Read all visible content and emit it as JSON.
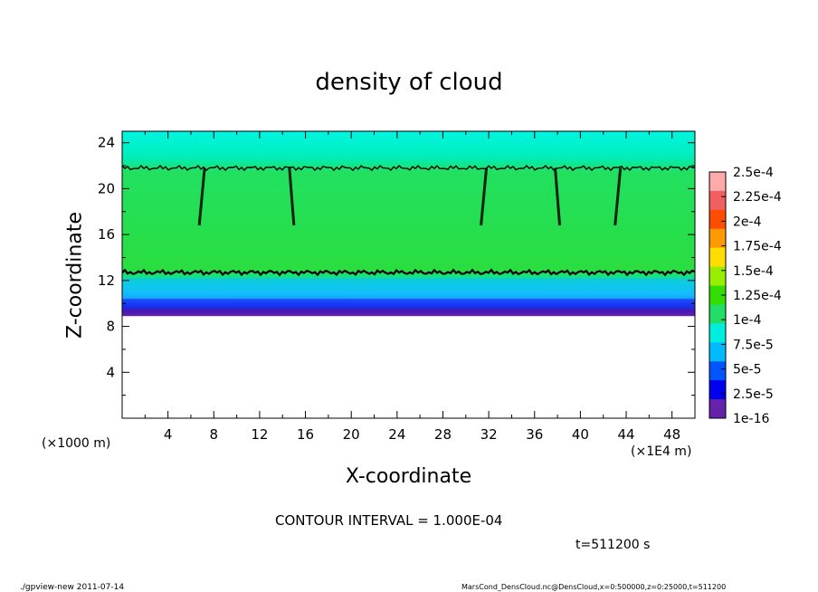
{
  "chart_data": {
    "type": "heatmap",
    "title": "density of cloud",
    "xlabel": "X-coordinate",
    "ylabel": "Z-coordinate",
    "x_unit_left": "(×1000 m)",
    "x_unit_right": "(×1E4 m)",
    "xlim": [
      0,
      50
    ],
    "ylim": [
      0,
      25
    ],
    "x_ticks": [
      "4",
      "8",
      "12",
      "16",
      "20",
      "24",
      "28",
      "32",
      "36",
      "40",
      "44",
      "48"
    ],
    "y_ticks": [
      "4",
      "8",
      "12",
      "16",
      "20",
      "24"
    ],
    "grid": false,
    "colorbar": {
      "labels": [
        "2.5e-4",
        "2.25e-4",
        "2e-4",
        "1.75e-4",
        "1.5e-4",
        "1.25e-4",
        "1e-4",
        "7.5e-5",
        "5e-5",
        "2.5e-5",
        "1e-16"
      ],
      "colors": [
        "#ffaaaa",
        "#f06060",
        "#ff4d00",
        "#ff9900",
        "#ffdd00",
        "#99ee00",
        "#33dd00",
        "#22dd66",
        "#00eedd",
        "#00bbff",
        "#0055ff",
        "#0000ee",
        "#6622aa"
      ]
    },
    "layers": [
      {
        "z_from": 0,
        "z_to": 8.9,
        "band": "none"
      },
      {
        "z_from": 8.9,
        "z_to": 9.6,
        "band": "1e-16 – 2.5e-5"
      },
      {
        "z_from": 9.6,
        "z_to": 10.4,
        "band": "2.5e-5 – 5e-5"
      },
      {
        "z_from": 10.4,
        "z_to": 12.2,
        "band": "5e-5 – 7.5e-5"
      },
      {
        "z_from": 12.2,
        "z_to": 21.8,
        "band": "1e-4 – 1.25e-4"
      },
      {
        "z_from": 21.8,
        "z_to": 25,
        "band": "7.5e-5 – 1e-4"
      }
    ],
    "contour_levels_z": [
      12.7,
      21.8
    ],
    "streaks_x": [
      7.2,
      14.6,
      31.8,
      37.8,
      43.5
    ]
  },
  "contour_interval": "CONTOUR INTERVAL = 1.000E-04",
  "time_label": "t=511200 s",
  "footer_left": "./gpview-new  2011-07-14",
  "footer_right": "MarsCond_DensCloud.nc@DensCloud,x=0:500000,z=0:25000,t=511200"
}
